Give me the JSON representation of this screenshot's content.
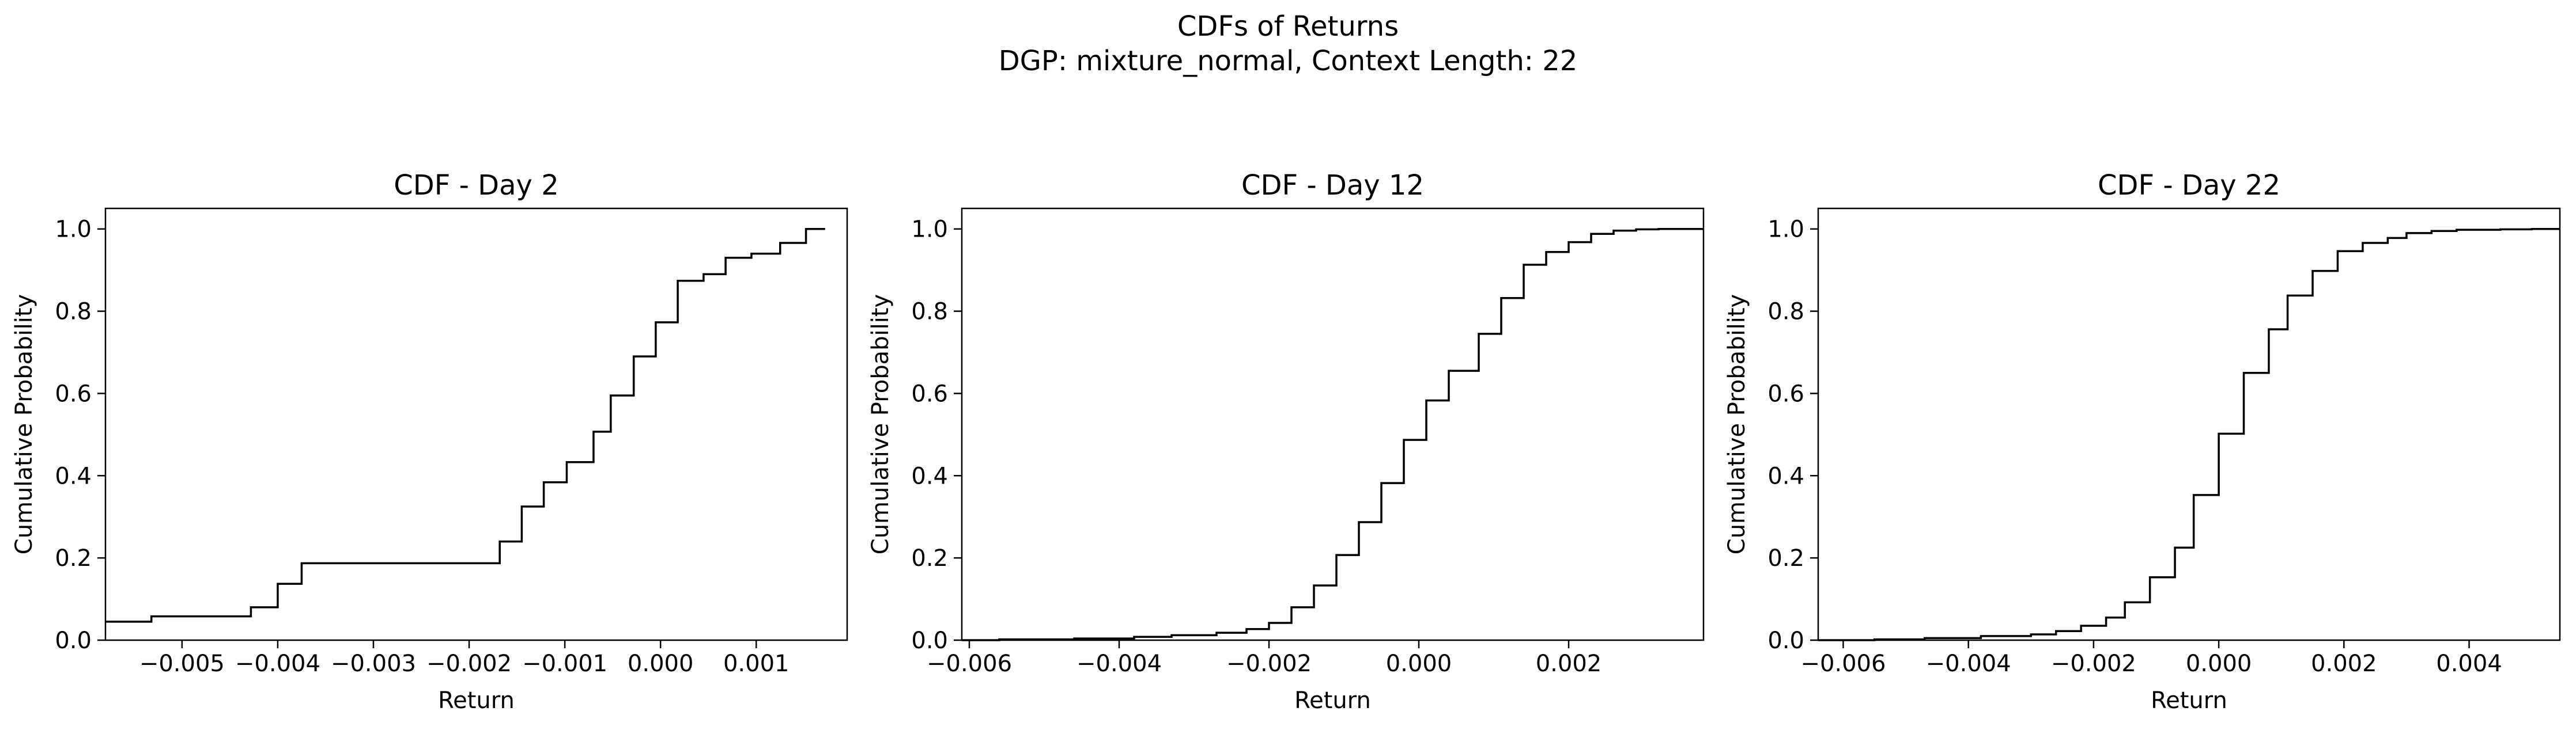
{
  "figure": {
    "suptitle_line1": "CDFs of Returns",
    "suptitle_line2": "DGP: mixture_normal, Context Length: 22"
  },
  "chart_data": [
    {
      "type": "line",
      "step": "post",
      "title": "CDF - Day 2",
      "xlabel": "Return",
      "ylabel": "Cumulative Probability",
      "xlim": [
        -0.0058,
        0.00195
      ],
      "ylim": [
        0.0,
        1.05
      ],
      "xticks": [
        -0.005,
        -0.004,
        -0.003,
        -0.002,
        -0.001,
        0.0,
        0.001
      ],
      "xtick_labels": [
        "−0.005",
        "−0.004",
        "−0.003",
        "−0.002",
        "−0.001",
        "0.000",
        "0.001"
      ],
      "yticks": [
        0.0,
        0.2,
        0.4,
        0.6,
        0.8,
        1.0
      ],
      "ytick_labels": [
        "0.0",
        "0.2",
        "0.4",
        "0.6",
        "0.8",
        "1.0"
      ],
      "grid": false,
      "series": [
        {
          "color": "#000000",
          "x": [
            -0.0058,
            -0.00532,
            -0.00428,
            -0.004,
            -0.00375,
            -0.00168,
            -0.00145,
            -0.00122,
            -0.00098,
            -0.0007,
            -0.00052,
            -0.00028,
            -5e-05,
            0.00018,
            0.00045,
            0.00068,
            0.00095,
            0.00125,
            0.00152,
            0.00172
          ],
          "y": [
            0.045,
            0.058,
            0.08,
            0.137,
            0.187,
            0.24,
            0.325,
            0.384,
            0.433,
            0.507,
            0.595,
            0.69,
            0.773,
            0.874,
            0.89,
            0.93,
            0.94,
            0.966,
            1.0,
            1.0
          ]
        }
      ]
    },
    {
      "type": "line",
      "step": "post",
      "title": "CDF - Day 12",
      "xlabel": "Return",
      "ylabel": "Cumulative Probability",
      "xlim": [
        -0.0061,
        0.0038
      ],
      "ylim": [
        0.0,
        1.05
      ],
      "xticks": [
        -0.006,
        -0.004,
        -0.002,
        0.0,
        0.002
      ],
      "xtick_labels": [
        "−0.006",
        "−0.004",
        "−0.002",
        "0.000",
        "0.002"
      ],
      "yticks": [
        0.0,
        0.2,
        0.4,
        0.6,
        0.8,
        1.0
      ],
      "ytick_labels": [
        "0.0",
        "0.2",
        "0.4",
        "0.6",
        "0.8",
        "1.0"
      ],
      "grid": false,
      "series": [
        {
          "color": "#000000",
          "x": [
            -0.0061,
            -0.0056,
            -0.0046,
            -0.0038,
            -0.0033,
            -0.0027,
            -0.0023,
            -0.002,
            -0.0017,
            -0.0014,
            -0.0011,
            -0.0008,
            -0.0005,
            -0.0002,
            0.0001,
            0.0004,
            0.0008,
            0.0011,
            0.0014,
            0.0017,
            0.002,
            0.0023,
            0.0026,
            0.0029,
            0.0032,
            0.0035,
            0.0038
          ],
          "y": [
            0.0,
            0.002,
            0.004,
            0.008,
            0.012,
            0.018,
            0.027,
            0.042,
            0.08,
            0.133,
            0.207,
            0.287,
            0.382,
            0.487,
            0.583,
            0.655,
            0.745,
            0.832,
            0.913,
            0.944,
            0.968,
            0.988,
            0.996,
            0.999,
            1.0,
            1.0,
            1.0
          ]
        }
      ]
    },
    {
      "type": "line",
      "step": "post",
      "title": "CDF - Day 22",
      "xlabel": "Return",
      "ylabel": "Cumulative Probability",
      "xlim": [
        -0.0064,
        0.00545
      ],
      "ylim": [
        0.0,
        1.05
      ],
      "xticks": [
        -0.006,
        -0.004,
        -0.002,
        0.0,
        0.002,
        0.004
      ],
      "xtick_labels": [
        "−0.006",
        "−0.004",
        "−0.002",
        "0.000",
        "0.002",
        "0.004"
      ],
      "yticks": [
        0.0,
        0.2,
        0.4,
        0.6,
        0.8,
        1.0
      ],
      "ytick_labels": [
        "0.0",
        "0.2",
        "0.4",
        "0.6",
        "0.8",
        "1.0"
      ],
      "grid": false,
      "series": [
        {
          "color": "#000000",
          "x": [
            -0.0064,
            -0.0055,
            -0.0047,
            -0.0038,
            -0.003,
            -0.0026,
            -0.0022,
            -0.0018,
            -0.0015,
            -0.0011,
            -0.0007,
            -0.0004,
            0.0,
            0.0004,
            0.0008,
            0.0011,
            0.0015,
            0.0019,
            0.0023,
            0.0027,
            0.003,
            0.0034,
            0.0038,
            0.0045,
            0.005,
            0.00545
          ],
          "y": [
            0.0,
            0.002,
            0.005,
            0.01,
            0.014,
            0.022,
            0.035,
            0.055,
            0.092,
            0.153,
            0.225,
            0.353,
            0.502,
            0.65,
            0.756,
            0.838,
            0.898,
            0.946,
            0.966,
            0.978,
            0.99,
            0.995,
            0.998,
            0.999,
            1.0,
            1.0
          ]
        }
      ]
    }
  ]
}
